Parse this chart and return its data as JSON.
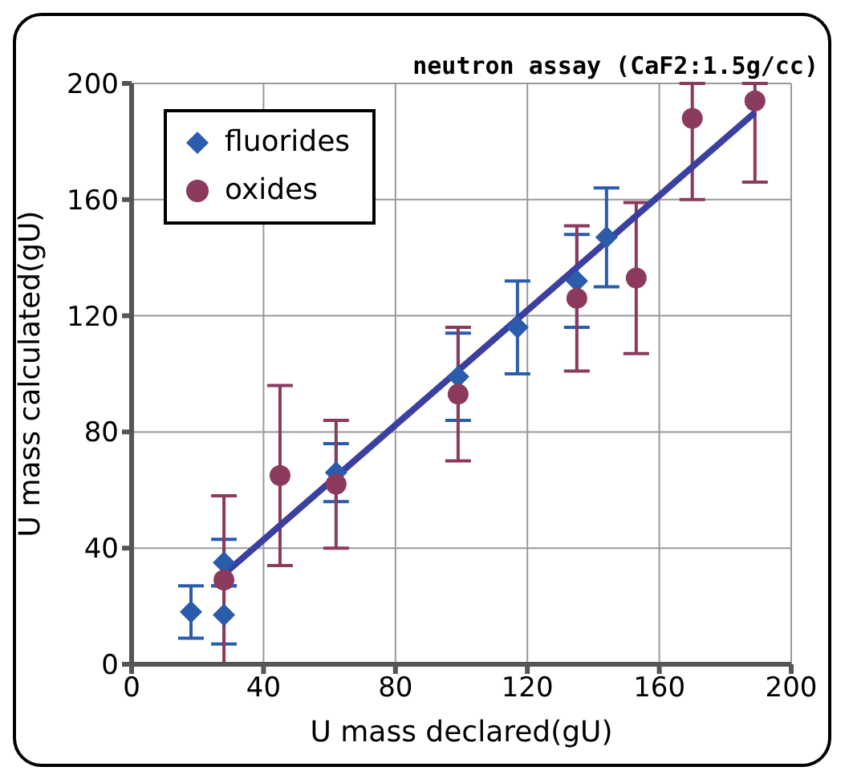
{
  "chart_data": {
    "type": "scatter",
    "title": "neutron assay (CaF2:1.5g/cc)",
    "xlabel": "U mass declared(gU)",
    "ylabel": "U mass calculated(gU)",
    "xlim": [
      0,
      200
    ],
    "ylim": [
      0,
      200
    ],
    "xticks": [
      0,
      40,
      80,
      120,
      160,
      200
    ],
    "yticks": [
      0,
      40,
      80,
      120,
      160,
      200
    ],
    "grid": true,
    "legend": "top left",
    "series": [
      {
        "name": "fluorides",
        "color": "#2b5bab",
        "marker": "diamond",
        "x": [
          18,
          28,
          28,
          62,
          99,
          117,
          135,
          144
        ],
        "values": [
          18,
          17,
          35,
          66,
          99,
          116,
          132,
          147
        ],
        "errors": [
          9,
          10,
          8,
          10,
          15,
          16,
          16,
          17
        ]
      },
      {
        "name": "oxides",
        "color": "#8b3a5e",
        "marker": "circle",
        "x": [
          28,
          45,
          62,
          99,
          135,
          153,
          170,
          189
        ],
        "values": [
          29,
          65,
          62,
          93,
          126,
          133,
          188,
          194
        ],
        "errors": [
          29,
          31,
          22,
          23,
          25,
          26,
          [
            160,
            200
          ],
          [
            166,
            200
          ]
        ]
      },
      {
        "type": "line",
        "color": "#3b3fa0",
        "marker": "none",
        "x": [
          28,
          189
        ],
        "values": [
          31,
          190
        ]
      }
    ]
  }
}
